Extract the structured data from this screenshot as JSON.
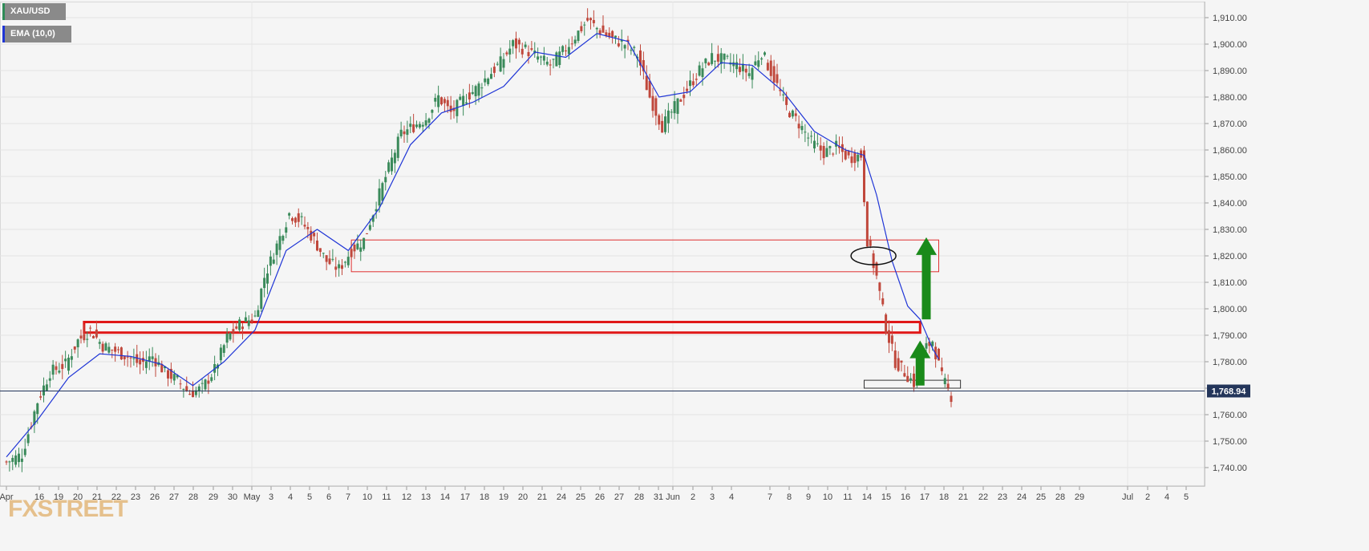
{
  "legend": {
    "symbol": "XAU/USD",
    "indicator": "EMA (10,0)",
    "candle_color": "#3a7d5d",
    "indicator_color": "#1f35d6"
  },
  "watermark": "FXSTREET",
  "price_label": "1,768.94",
  "chart_data": {
    "type": "candlestick",
    "symbol": "XAU/USD",
    "indicator": "EMA (10,0)",
    "ylim": [
      1735,
      1915
    ],
    "y_ticks": [
      "1,740.00",
      "1,750.00",
      "1,760.00",
      "1,770.00",
      "1,780.00",
      "1,790.00",
      "1,800.00",
      "1,810.00",
      "1,820.00",
      "1,830.00",
      "1,840.00",
      "1,850.00",
      "1,860.00",
      "1,870.00",
      "1,880.00",
      "1,890.00",
      "1,900.00",
      "1,910.00"
    ],
    "x_ticks": [
      "Apr",
      "16",
      "19",
      "20",
      "21",
      "22",
      "23",
      "26",
      "27",
      "28",
      "29",
      "30",
      "May",
      "3",
      "4",
      "5",
      "6",
      "7",
      "10",
      "11",
      "12",
      "13",
      "14",
      "17",
      "18",
      "19",
      "20",
      "21",
      "24",
      "25",
      "26",
      "27",
      "28",
      "31",
      "Jun",
      "2",
      "3",
      "4",
      "7",
      "8",
      "9",
      "10",
      "11",
      "14",
      "15",
      "16",
      "17",
      "18",
      "21",
      "22",
      "23",
      "24",
      "25",
      "28",
      "29",
      "Jul",
      "2",
      "4",
      "5"
    ],
    "current_price": 1768.94,
    "close_path": [
      [
        0,
        1742
      ],
      [
        5,
        1745
      ],
      [
        10,
        1765
      ],
      [
        14,
        1776
      ],
      [
        19,
        1779
      ],
      [
        23,
        1788
      ],
      [
        27,
        1792
      ],
      [
        31,
        1786
      ],
      [
        35,
        1784
      ],
      [
        39,
        1782
      ],
      [
        43,
        1779
      ],
      [
        47,
        1782
      ],
      [
        51,
        1776
      ],
      [
        55,
        1773
      ],
      [
        59,
        1768
      ],
      [
        63,
        1770
      ],
      [
        67,
        1777
      ],
      [
        71,
        1789
      ],
      [
        75,
        1794
      ],
      [
        80,
        1797
      ],
      [
        83,
        1812
      ],
      [
        87,
        1824
      ],
      [
        91,
        1836
      ],
      [
        95,
        1833
      ],
      [
        99,
        1826
      ],
      [
        103,
        1818
      ],
      [
        107,
        1815
      ],
      [
        111,
        1822
      ],
      [
        115,
        1826
      ],
      [
        119,
        1840
      ],
      [
        123,
        1853
      ],
      [
        127,
        1866
      ],
      [
        131,
        1869
      ],
      [
        135,
        1872
      ],
      [
        139,
        1880
      ],
      [
        143,
        1874
      ],
      [
        147,
        1879
      ],
      [
        151,
        1883
      ],
      [
        155,
        1888
      ],
      [
        159,
        1893
      ],
      [
        163,
        1900
      ],
      [
        167,
        1898
      ],
      [
        171,
        1895
      ],
      [
        175,
        1892
      ],
      [
        179,
        1897
      ],
      [
        183,
        1903
      ],
      [
        187,
        1909
      ],
      [
        191,
        1905
      ],
      [
        195,
        1902
      ],
      [
        199,
        1900
      ],
      [
        203,
        1896
      ],
      [
        207,
        1880
      ],
      [
        211,
        1869
      ],
      [
        215,
        1876
      ],
      [
        219,
        1883
      ],
      [
        223,
        1890
      ],
      [
        227,
        1895
      ],
      [
        231,
        1894
      ],
      [
        235,
        1892
      ],
      [
        239,
        1889
      ],
      [
        243,
        1897
      ],
      [
        247,
        1887
      ],
      [
        251,
        1876
      ],
      [
        255,
        1870
      ],
      [
        259,
        1863
      ],
      [
        263,
        1859
      ],
      [
        267,
        1861
      ],
      [
        271,
        1857
      ],
      [
        275,
        1858
      ],
      [
        277,
        1826
      ],
      [
        280,
        1812
      ],
      [
        283,
        1793
      ],
      [
        286,
        1780
      ],
      [
        289,
        1776
      ],
      [
        292,
        1772
      ],
      [
        295,
        1784
      ],
      [
        298,
        1788
      ],
      [
        301,
        1774
      ],
      [
        304,
        1767
      ]
    ],
    "ema_path": [
      [
        0,
        1744
      ],
      [
        10,
        1758
      ],
      [
        20,
        1774
      ],
      [
        30,
        1783
      ],
      [
        40,
        1782
      ],
      [
        50,
        1779
      ],
      [
        60,
        1771
      ],
      [
        70,
        1780
      ],
      [
        80,
        1792
      ],
      [
        90,
        1822
      ],
      [
        100,
        1830
      ],
      [
        110,
        1822
      ],
      [
        120,
        1838
      ],
      [
        130,
        1862
      ],
      [
        140,
        1874
      ],
      [
        150,
        1878
      ],
      [
        160,
        1884
      ],
      [
        170,
        1897
      ],
      [
        180,
        1895
      ],
      [
        190,
        1904
      ],
      [
        200,
        1901
      ],
      [
        210,
        1880
      ],
      [
        220,
        1882
      ],
      [
        230,
        1893
      ],
      [
        240,
        1892
      ],
      [
        250,
        1882
      ],
      [
        260,
        1867
      ],
      [
        270,
        1860
      ],
      [
        276,
        1858
      ],
      [
        280,
        1843
      ],
      [
        285,
        1818
      ],
      [
        290,
        1801
      ],
      [
        294,
        1796
      ],
      [
        298,
        1785
      ],
      [
        300,
        1781
      ]
    ],
    "zones": [
      {
        "from_bar": 111,
        "to_bar": 300,
        "low": 1814,
        "high": 1826
      },
      {
        "from_bar": 25,
        "to_bar": 294,
        "low": 1791,
        "high": 1795
      },
      {
        "from_bar": 276,
        "to_bar": 307,
        "low": 1770,
        "high": 1773
      }
    ],
    "arrows": [
      {
        "bar": 296,
        "from": 1796,
        "to": 1827
      },
      {
        "bar": 294,
        "from": 1771,
        "to": 1788
      }
    ],
    "ellipse": {
      "bar": 279,
      "price": 1820
    }
  }
}
